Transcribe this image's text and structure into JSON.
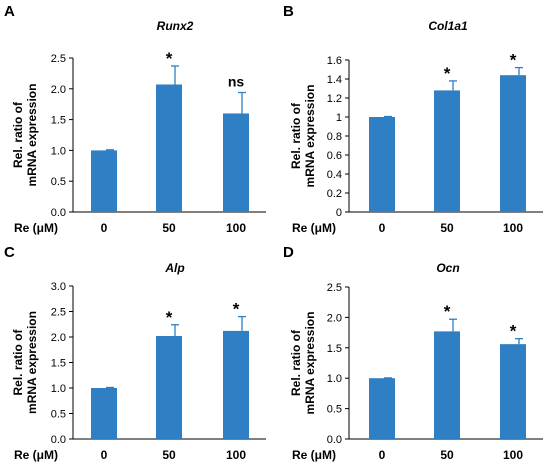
{
  "chart_data": [
    {
      "panel": "A",
      "type": "bar",
      "title": "Runx2",
      "ylabel": [
        "Rel. ratio of",
        "mRNA expression"
      ],
      "xlabel": "Re (μM)",
      "categories": [
        "0",
        "50",
        "100"
      ],
      "values": [
        1.0,
        2.07,
        1.6
      ],
      "errors": [
        0.01,
        0.3,
        0.34
      ],
      "significance": [
        "",
        "*",
        "ns"
      ],
      "ylim": [
        0,
        2.5
      ],
      "yticks": [
        "0.0",
        "0.5",
        "1.0",
        "1.5",
        "2.0",
        "2.5"
      ],
      "grid": false,
      "color": "#2e7fc3"
    },
    {
      "panel": "B",
      "type": "bar",
      "title": "Col1a1",
      "ylabel": [
        "Rel. ratio of",
        "mRNA expression"
      ],
      "xlabel": "Re (μM)",
      "categories": [
        "0",
        "50",
        "100"
      ],
      "values": [
        1.0,
        1.28,
        1.44
      ],
      "errors": [
        0.005,
        0.1,
        0.08
      ],
      "significance": [
        "",
        "*",
        "*"
      ],
      "ylim": [
        0,
        1.6
      ],
      "yticks": [
        "0",
        "0.2",
        "0.4",
        "0.6",
        "0.8",
        "1",
        "1.2",
        "1.4",
        "1.6"
      ],
      "grid": false,
      "color": "#2e7fc3"
    },
    {
      "panel": "C",
      "type": "bar",
      "title": "Alp",
      "ylabel": [
        "Rel. ratio of",
        "mRNA expression"
      ],
      "xlabel": "Re (μM)",
      "categories": [
        "0",
        "50",
        "100"
      ],
      "values": [
        1.0,
        2.02,
        2.12
      ],
      "errors": [
        0.01,
        0.22,
        0.28
      ],
      "significance": [
        "",
        "*",
        "*"
      ],
      "ylim": [
        0,
        3.0
      ],
      "yticks": [
        "0.0",
        "0.5",
        "1.0",
        "1.5",
        "2.0",
        "2.5",
        "3.0"
      ],
      "grid": false,
      "color": "#2e7fc3"
    },
    {
      "panel": "D",
      "type": "bar",
      "title": "Ocn",
      "ylabel": [
        "Rel. ratio of",
        "mRNA expression"
      ],
      "xlabel": "Re (μM)",
      "categories": [
        "0",
        "50",
        "100"
      ],
      "values": [
        1.0,
        1.77,
        1.56
      ],
      "errors": [
        0.005,
        0.2,
        0.09
      ],
      "significance": [
        "",
        "*",
        "*"
      ],
      "ylim": [
        0,
        2.5
      ],
      "yticks": [
        "0.0",
        "0.5",
        "1.0",
        "1.5",
        "2.0",
        "2.5"
      ],
      "grid": false,
      "color": "#2e7fc3"
    }
  ]
}
